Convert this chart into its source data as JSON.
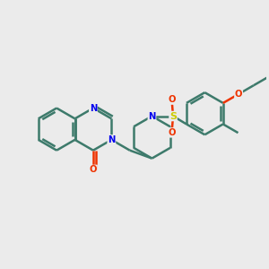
{
  "background_color": "#ebebeb",
  "bond_color": "#3d7a6b",
  "bond_width": 1.8,
  "atom_colors": {
    "N": "#0000ee",
    "O": "#ee3300",
    "S": "#cccc00",
    "C": "#3d7a6b"
  },
  "figsize": [
    3.0,
    3.0
  ],
  "dpi": 100,
  "xlim": [
    0,
    10
  ],
  "ylim": [
    0,
    10
  ]
}
